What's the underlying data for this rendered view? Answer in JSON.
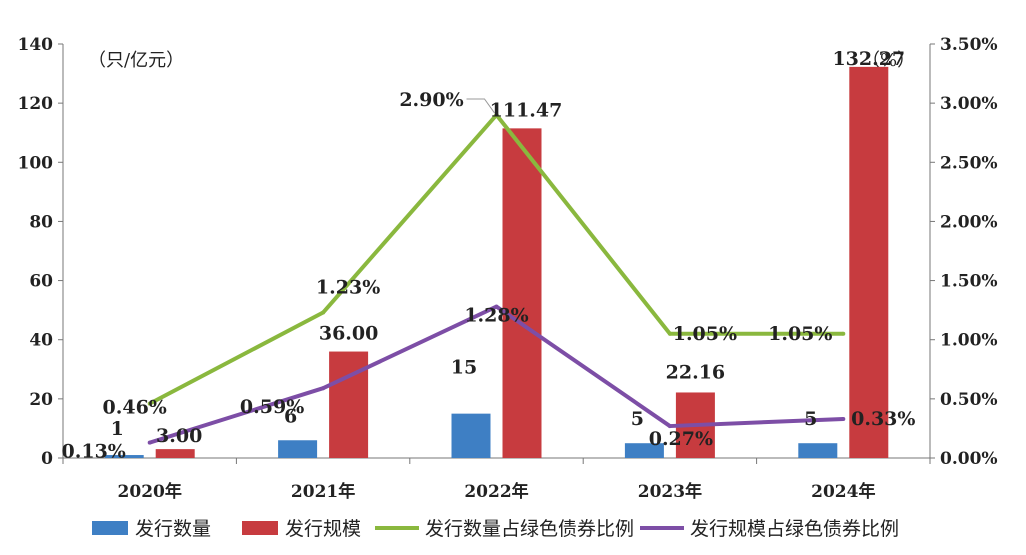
{
  "chart_data": {
    "type": "bar",
    "categories": [
      "2020年",
      "2021年",
      "2022年",
      "2023年",
      "2024年"
    ],
    "left_axis": {
      "unit": "（只/亿元）",
      "ylim": [
        0,
        140
      ],
      "ticks": [
        "0",
        "20",
        "40",
        "60",
        "80",
        "100",
        "120",
        "140"
      ]
    },
    "right_axis": {
      "unit": "（%）",
      "ylim": [
        0,
        3.5
      ],
      "ticks": [
        "0.00%",
        "0.50%",
        "1.00%",
        "1.50%",
        "2.00%",
        "2.50%",
        "3.00%",
        "3.50%"
      ]
    },
    "series": [
      {
        "name": "发行数量",
        "type": "bar",
        "axis": "left",
        "color": "#3e7fc4",
        "values": [
          1,
          6,
          15,
          5,
          5
        ],
        "labels": [
          "1",
          "6",
          "15",
          "5",
          "5"
        ]
      },
      {
        "name": "发行规模",
        "type": "bar",
        "axis": "left",
        "color": "#c73b3f",
        "values": [
          3.0,
          36.0,
          111.47,
          22.16,
          132.27
        ],
        "labels": [
          "3.00",
          "36.00",
          "111.47",
          "22.16",
          "132.27"
        ]
      },
      {
        "name": "发行数量占绿色债券比例",
        "type": "line",
        "axis": "right",
        "color": "#8ab83e",
        "values": [
          0.46,
          1.23,
          2.9,
          1.05,
          1.05
        ],
        "labels": [
          "0.46%",
          "1.23%",
          "2.90%",
          "1.05%",
          "1.05%"
        ]
      },
      {
        "name": "发行规模占绿色债券比例",
        "type": "line",
        "axis": "right",
        "color": "#7d4ea6",
        "values": [
          0.13,
          0.59,
          1.28,
          0.27,
          0.33
        ],
        "labels": [
          "0.13%",
          "0.59%",
          "1.28%",
          "0.27%",
          "0.33%"
        ]
      }
    ],
    "legend": "bottom",
    "grid": false
  }
}
